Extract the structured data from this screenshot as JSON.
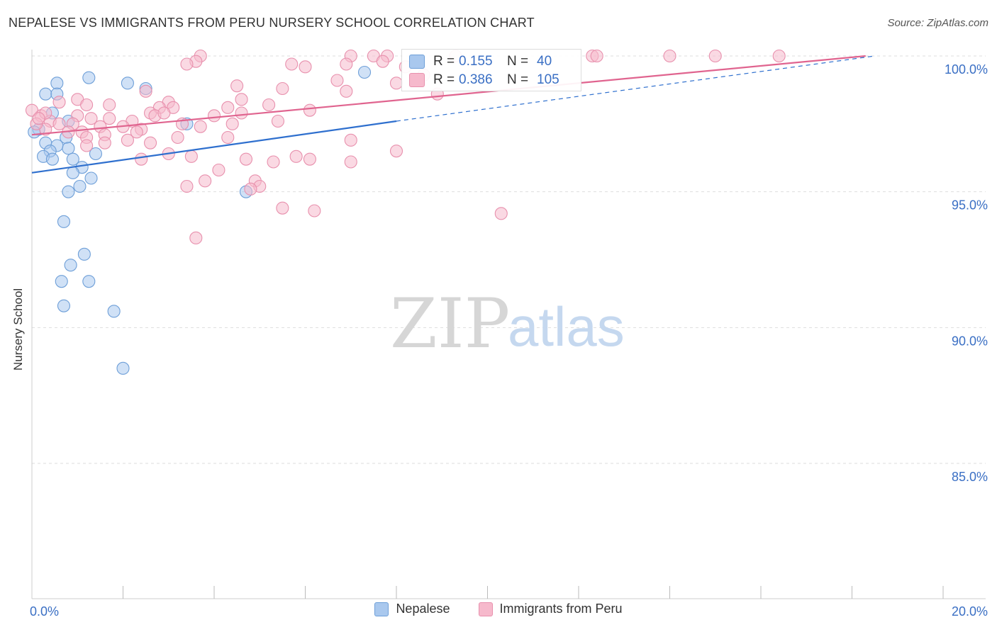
{
  "title": "NEPALESE VS IMMIGRANTS FROM PERU NURSERY SCHOOL CORRELATION CHART",
  "source": "Source: ZipAtlas.com",
  "watermark": {
    "zip": "ZIP",
    "atlas": "atlas"
  },
  "colors": {
    "blue_fill": "#a9c8ee",
    "blue_stroke": "#6e9fd8",
    "blue_line": "#2e6fce",
    "pink_fill": "#f6b9cc",
    "pink_stroke": "#e890ad",
    "pink_line": "#e0648f",
    "grid": "#dddddd",
    "tick_label": "#3a6fc4"
  },
  "stats": {
    "r_label": "R =",
    "n_label": "N =",
    "blue": {
      "r": "0.155",
      "n": "40"
    },
    "pink": {
      "r": "0.386",
      "n": "105"
    }
  },
  "chart_data": {
    "type": "scatter",
    "xlabel": "",
    "ylabel": "Nursery School",
    "xlim": [
      0,
      20
    ],
    "ylim": [
      80.5,
      100.3
    ],
    "x_tick_labels": [
      {
        "v": 0,
        "label": "0.0%"
      },
      {
        "v": 20,
        "label": "20.0%"
      }
    ],
    "x_minor_ticks": [
      2,
      4,
      6,
      8,
      10,
      12,
      14,
      16,
      18
    ],
    "y_ticks": [
      {
        "v": 100,
        "label": "100.0%"
      },
      {
        "v": 95,
        "label": "95.0%"
      },
      {
        "v": 90,
        "label": "90.0%"
      },
      {
        "v": 85,
        "label": "85.0%"
      }
    ],
    "legend": [
      "Nepalese",
      "Immigrants from Peru"
    ],
    "series": [
      {
        "name": "Nepalese",
        "color": "blue",
        "trend": {
          "x0": 0,
          "y0": 95.7,
          "x1": 8.0,
          "y1": 97.6,
          "dash_to_x": 18.5,
          "dash_to_y": 100.0
        },
        "points": [
          [
            1.25,
            99.2
          ],
          [
            2.1,
            99.0
          ],
          [
            0.55,
            99.0
          ],
          [
            2.5,
            98.8
          ],
          [
            0.3,
            98.6
          ],
          [
            0.55,
            98.6
          ],
          [
            7.3,
            99.4
          ],
          [
            0.45,
            97.9
          ],
          [
            0.8,
            97.6
          ],
          [
            0.75,
            97.0
          ],
          [
            0.15,
            97.3
          ],
          [
            0.05,
            97.2
          ],
          [
            3.4,
            97.5
          ],
          [
            0.3,
            96.8
          ],
          [
            0.8,
            96.6
          ],
          [
            0.55,
            96.7
          ],
          [
            0.4,
            96.5
          ],
          [
            0.25,
            96.3
          ],
          [
            0.45,
            96.2
          ],
          [
            0.9,
            96.2
          ],
          [
            1.4,
            96.4
          ],
          [
            1.1,
            95.9
          ],
          [
            0.9,
            95.7
          ],
          [
            1.3,
            95.5
          ],
          [
            1.05,
            95.2
          ],
          [
            0.8,
            95.0
          ],
          [
            4.7,
            95.0
          ],
          [
            0.7,
            93.9
          ],
          [
            1.15,
            92.7
          ],
          [
            0.85,
            92.3
          ],
          [
            0.65,
            91.7
          ],
          [
            1.25,
            91.7
          ],
          [
            0.7,
            90.8
          ],
          [
            1.8,
            90.6
          ],
          [
            2.0,
            88.5
          ]
        ]
      },
      {
        "name": "Immigrants from Peru",
        "color": "pink",
        "trend": {
          "x0": 0,
          "y0": 97.1,
          "x1": 18.3,
          "y1": 100.0
        },
        "points": [
          [
            3.7,
            100.0
          ],
          [
            7.0,
            100.0
          ],
          [
            7.5,
            100.0
          ],
          [
            7.8,
            100.0
          ],
          [
            9.3,
            100.0
          ],
          [
            12.3,
            100.0
          ],
          [
            12.4,
            100.0
          ],
          [
            14.0,
            100.0
          ],
          [
            15.0,
            100.0
          ],
          [
            16.4,
            100.0
          ],
          [
            3.6,
            99.8
          ],
          [
            3.4,
            99.7
          ],
          [
            5.7,
            99.7
          ],
          [
            6.0,
            99.6
          ],
          [
            6.9,
            99.7
          ],
          [
            7.7,
            99.8
          ],
          [
            8.2,
            99.6
          ],
          [
            6.7,
            99.1
          ],
          [
            8.0,
            99.0
          ],
          [
            8.6,
            99.3
          ],
          [
            4.5,
            98.9
          ],
          [
            5.5,
            98.8
          ],
          [
            6.9,
            98.7
          ],
          [
            2.5,
            98.7
          ],
          [
            8.9,
            98.6
          ],
          [
            4.6,
            98.4
          ],
          [
            3.0,
            98.3
          ],
          [
            1.0,
            98.4
          ],
          [
            0.6,
            98.3
          ],
          [
            1.2,
            98.2
          ],
          [
            1.7,
            98.2
          ],
          [
            2.8,
            98.1
          ],
          [
            3.1,
            98.1
          ],
          [
            4.3,
            98.1
          ],
          [
            6.1,
            98.0
          ],
          [
            5.2,
            98.2
          ],
          [
            2.6,
            97.9
          ],
          [
            2.7,
            97.8
          ],
          [
            2.9,
            97.9
          ],
          [
            4.0,
            97.8
          ],
          [
            4.6,
            97.9
          ],
          [
            1.0,
            97.8
          ],
          [
            1.3,
            97.7
          ],
          [
            1.7,
            97.7
          ],
          [
            0.2,
            97.8
          ],
          [
            0.4,
            97.6
          ],
          [
            0.6,
            97.5
          ],
          [
            0.9,
            97.5
          ],
          [
            2.2,
            97.6
          ],
          [
            3.3,
            97.5
          ],
          [
            3.7,
            97.4
          ],
          [
            4.4,
            97.5
          ],
          [
            5.4,
            97.6
          ],
          [
            1.5,
            97.4
          ],
          [
            2.0,
            97.4
          ],
          [
            2.4,
            97.3
          ],
          [
            0.3,
            97.3
          ],
          [
            0.8,
            97.2
          ],
          [
            1.1,
            97.2
          ],
          [
            1.6,
            97.1
          ],
          [
            2.3,
            97.2
          ],
          [
            1.2,
            97.0
          ],
          [
            3.2,
            97.0
          ],
          [
            4.3,
            97.0
          ],
          [
            7.0,
            96.9
          ],
          [
            2.1,
            96.9
          ],
          [
            2.6,
            96.8
          ],
          [
            1.6,
            96.8
          ],
          [
            1.2,
            96.7
          ],
          [
            3.0,
            96.4
          ],
          [
            3.5,
            96.3
          ],
          [
            4.7,
            96.2
          ],
          [
            5.8,
            96.3
          ],
          [
            6.1,
            96.2
          ],
          [
            5.3,
            96.1
          ],
          [
            7.0,
            96.1
          ],
          [
            8.0,
            96.5
          ],
          [
            2.4,
            96.2
          ],
          [
            4.1,
            95.8
          ],
          [
            3.8,
            95.4
          ],
          [
            3.4,
            95.2
          ],
          [
            4.9,
            95.4
          ],
          [
            5.0,
            95.2
          ],
          [
            4.8,
            95.1
          ],
          [
            5.5,
            94.4
          ],
          [
            6.2,
            94.3
          ],
          [
            10.3,
            94.2
          ],
          [
            3.6,
            93.3
          ],
          [
            0.0,
            98.0
          ],
          [
            0.1,
            97.5
          ],
          [
            0.3,
            97.9
          ],
          [
            0.15,
            97.7
          ]
        ]
      }
    ]
  }
}
